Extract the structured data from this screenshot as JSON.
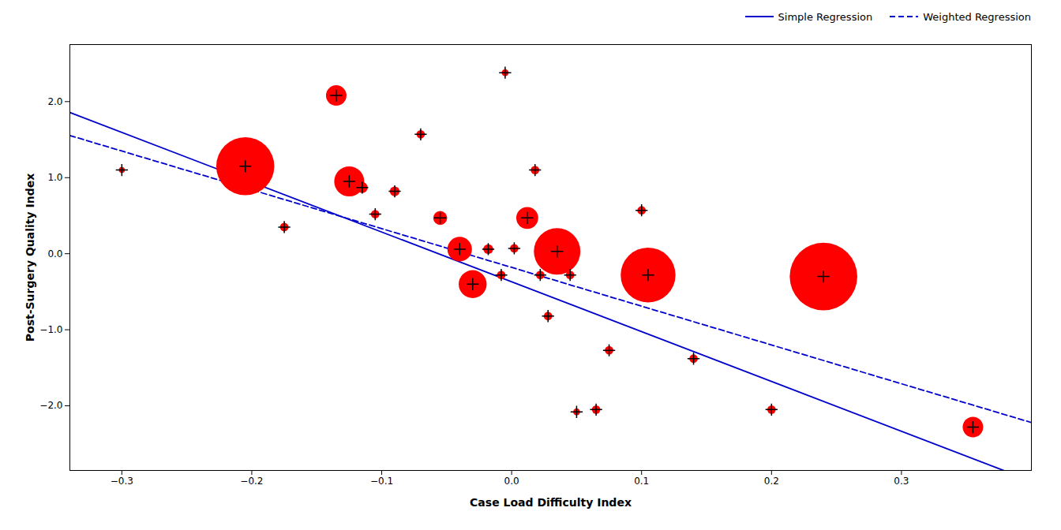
{
  "chart_data": {
    "type": "scatter",
    "xlabel": "Case Load Difficulty Index",
    "ylabel": "Post-Surgery Quality Index",
    "xlim": [
      -0.34,
      0.4
    ],
    "ylim": [
      -2.85,
      2.75
    ],
    "xticks": [
      -0.3,
      -0.2,
      -0.1,
      0.0,
      0.1,
      0.2,
      0.3
    ],
    "yticks": [
      -2,
      -1,
      0,
      1,
      2
    ],
    "grid": false,
    "legend": "upper right",
    "series": [
      {
        "type": "scatter",
        "color": "#FF0000",
        "marker": "+",
        "x": [
          -0.3,
          -0.205,
          -0.175,
          -0.135,
          -0.125,
          -0.115,
          -0.105,
          -0.09,
          -0.07,
          -0.055,
          -0.04,
          -0.03,
          -0.018,
          -0.008,
          -0.005,
          0.002,
          0.012,
          0.018,
          0.022,
          0.028,
          0.035,
          0.045,
          0.05,
          0.065,
          0.075,
          0.1,
          0.105,
          0.14,
          0.2,
          0.24,
          0.355
        ],
        "y": [
          1.1,
          1.15,
          0.35,
          2.08,
          0.95,
          0.87,
          0.52,
          0.82,
          1.57,
          0.47,
          0.06,
          -0.4,
          0.06,
          -0.28,
          2.38,
          0.07,
          0.47,
          1.1,
          -0.28,
          -0.82,
          0.03,
          -0.28,
          -2.08,
          -2.05,
          -1.27,
          0.57,
          -0.28,
          -1.38,
          -2.05,
          -0.3,
          -2.28
        ],
        "sizes": [
          30,
          2800,
          60,
          350,
          750,
          100,
          60,
          80,
          60,
          160,
          500,
          650,
          80,
          60,
          40,
          60,
          400,
          60,
          60,
          60,
          1800,
          60,
          40,
          60,
          60,
          60,
          2500,
          60,
          60,
          3800,
          350
        ]
      },
      {
        "name": "Simple Regression",
        "type": "line",
        "color": "#0000CC",
        "line_style": "solid",
        "intercept": -0.37,
        "slope": -6.55
      },
      {
        "name": "Weighted Regression",
        "type": "line",
        "color": "#0000CC",
        "line_style": "dashed",
        "intercept": -0.18,
        "slope": -5.1
      }
    ]
  }
}
